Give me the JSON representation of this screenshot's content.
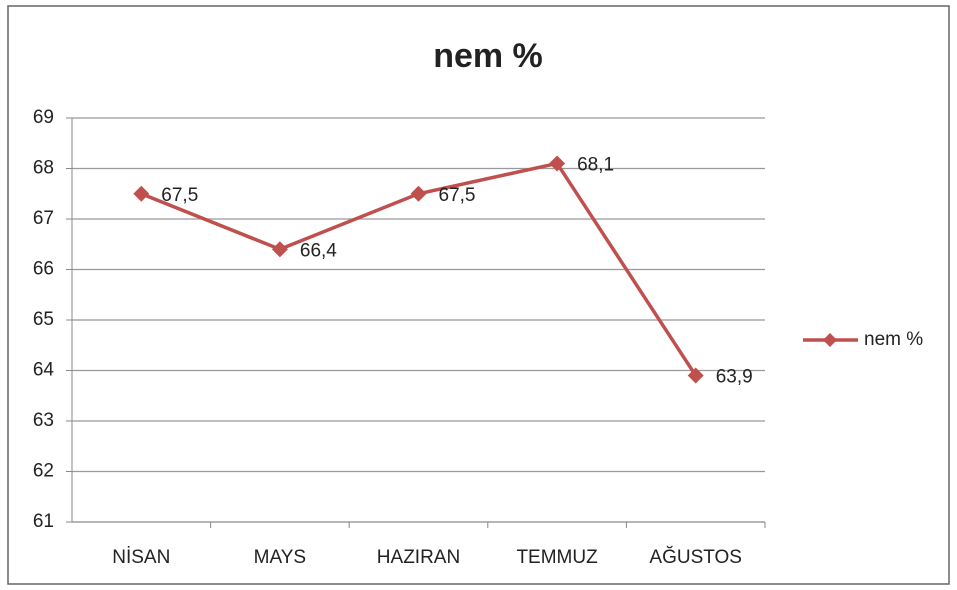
{
  "chart_data": {
    "type": "line",
    "title": "nem %",
    "categories": [
      "NİSAN",
      "MAYS",
      "HAZIRAN",
      "TEMMUZ",
      "AĞUSTOS"
    ],
    "series": [
      {
        "name": "nem %",
        "color": "#c0504d",
        "values": [
          67.5,
          66.4,
          67.5,
          68.1,
          63.9
        ],
        "value_labels": [
          "67,5",
          "66,4",
          "67,5",
          "68,1",
          "63,9"
        ]
      }
    ],
    "ylim": [
      61,
      69
    ],
    "yticks": [
      61,
      62,
      63,
      64,
      65,
      66,
      67,
      68,
      69
    ],
    "grid": true,
    "legend": "right"
  }
}
